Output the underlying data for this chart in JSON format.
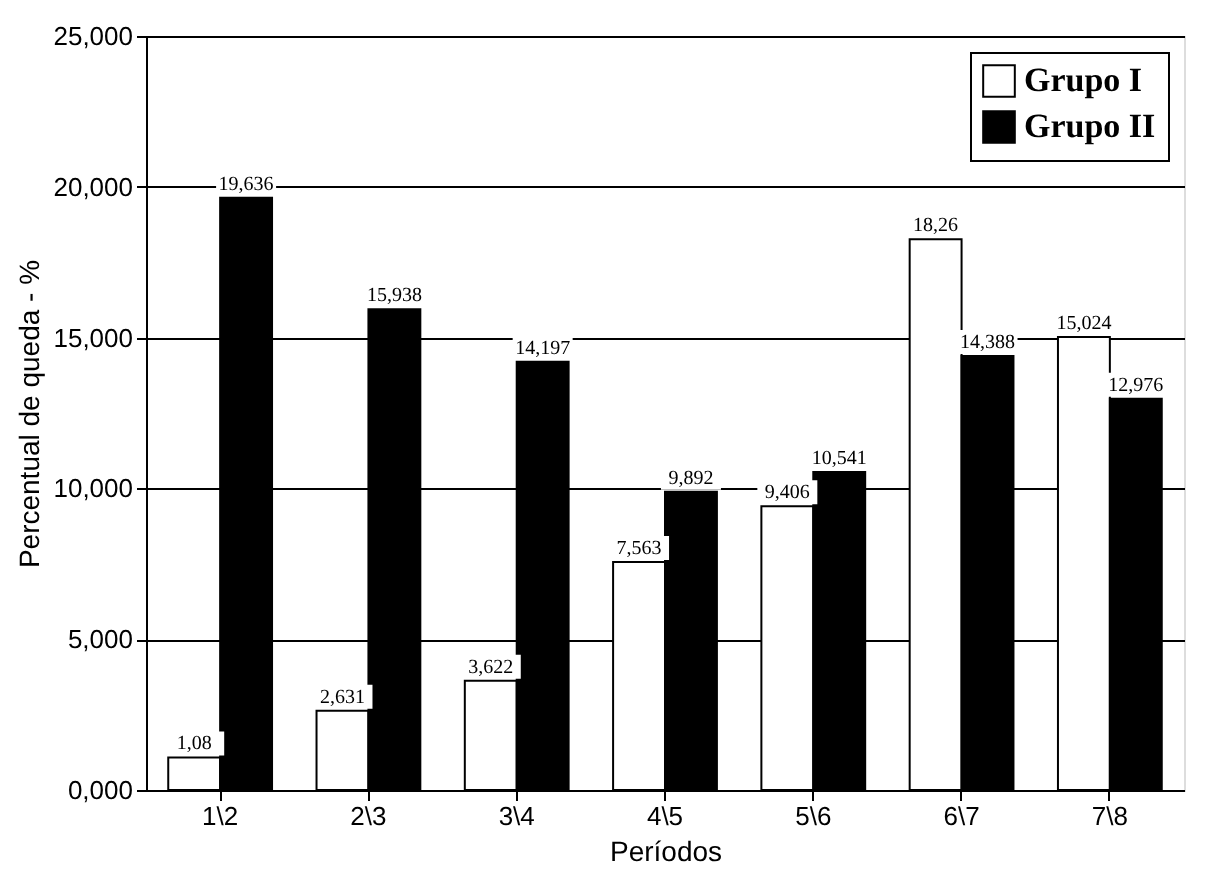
{
  "chart_data": {
    "type": "bar",
    "xlabel": "Períodos",
    "ylabel": "Percentual de queda - %",
    "categories": [
      "1\\2",
      "2\\3",
      "3\\4",
      "4\\5",
      "5\\6",
      "6\\7",
      "7\\8"
    ],
    "series": [
      {
        "name": "Grupo I",
        "color": "#ffffff",
        "values": [
          1.08,
          2.631,
          3.622,
          7.563,
          9.406,
          18.26,
          15.024
        ],
        "value_labels": [
          "1,08",
          "2,631",
          "3,622",
          "7,563",
          "9,406",
          "18,26",
          "15,024"
        ]
      },
      {
        "name": "Grupo II",
        "color": "#000000",
        "values": [
          19.636,
          15.938,
          14.197,
          9.892,
          10.541,
          14.388,
          12.976
        ],
        "value_labels": [
          "19,636",
          "15,938",
          "14,197",
          "9,892",
          "10,541",
          "14,388",
          "12,976"
        ]
      }
    ],
    "ylim": [
      0,
      25
    ],
    "yticks": [
      {
        "value": 0,
        "label": "0,000"
      },
      {
        "value": 5,
        "label": "5,000"
      },
      {
        "value": 10,
        "label": "10,000"
      },
      {
        "value": 15,
        "label": "15,000"
      },
      {
        "value": 20,
        "label": "20,000"
      },
      {
        "value": 25,
        "label": "25,000"
      }
    ],
    "grid": "y",
    "legend": "top right"
  }
}
